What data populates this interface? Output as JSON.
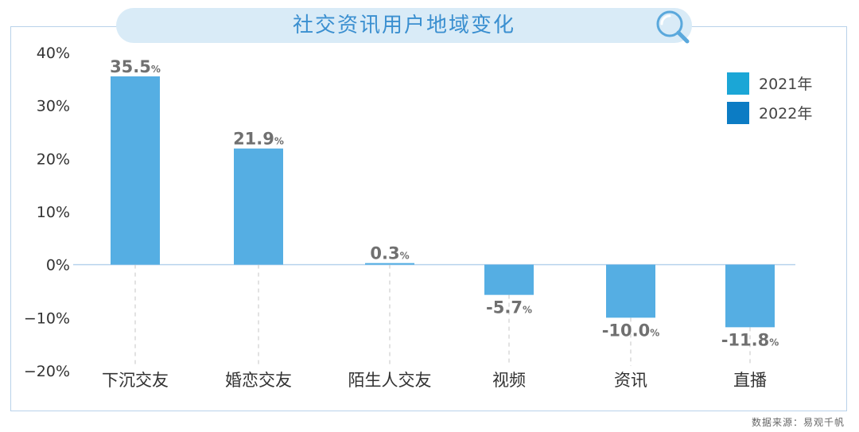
{
  "title": "社交资讯用户地域变化",
  "source": "数据来源：易观千帆",
  "chart_data": {
    "type": "bar",
    "categories": [
      "下沉交友",
      "婚恋交友",
      "陌生人交友",
      "视频",
      "资讯",
      "直播"
    ],
    "values": [
      35.5,
      21.9,
      0.3,
      -5.7,
      -10.0,
      -11.8
    ],
    "value_labels": [
      "35.5",
      "21.9",
      "0.3",
      "-5.7",
      "-10.0",
      "-11.8"
    ],
    "value_unit": "%",
    "yticks": [
      "40%",
      "30%",
      "20%",
      "10%",
      "0%",
      "−10%",
      "−20%"
    ],
    "ytick_values": [
      40,
      30,
      20,
      10,
      0,
      -10,
      -20
    ],
    "ylim": [
      -20,
      40
    ],
    "legend": [
      {
        "label": "2021年",
        "color": "#1ba6d6"
      },
      {
        "label": "2022年",
        "color": "#0c7cc4"
      }
    ],
    "legend_position": "top-right",
    "bar_color": "#55aee3"
  }
}
